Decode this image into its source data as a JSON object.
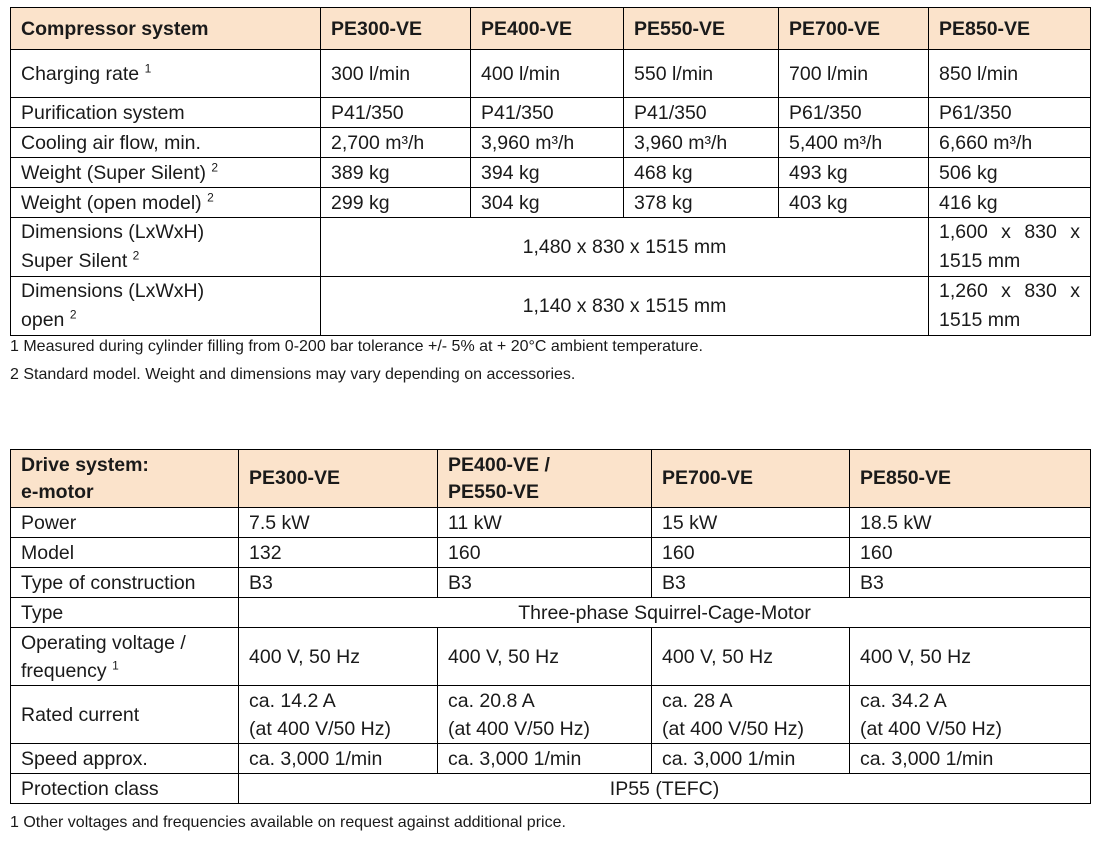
{
  "compressor": {
    "header": {
      "label": "Compressor system",
      "models": [
        "PE300-VE",
        "PE400-VE",
        "PE550-VE",
        "PE700-VE",
        "PE850-VE"
      ]
    },
    "rows": {
      "charging_rate": {
        "label": "Charging rate",
        "sup": "1",
        "values": [
          "300 l/min",
          "400 l/min",
          "550 l/min",
          "700 l/min",
          "850 l/min"
        ]
      },
      "purification": {
        "label": "Purification system",
        "values": [
          "P41/350",
          "P41/350",
          "P41/350",
          "P61/350",
          "P61/350"
        ]
      },
      "cooling": {
        "label": "Cooling air flow, min.",
        "values": [
          "2,700 m³/h",
          "3,960 m³/h",
          "3,960 m³/h",
          "5,400 m³/h",
          "6,660 m³/h"
        ]
      },
      "weight_silent": {
        "label": "Weight (Super Silent)",
        "sup": "2",
        "values": [
          "389 kg",
          "394 kg",
          "468 kg",
          "493 kg",
          "506 kg"
        ]
      },
      "weight_open": {
        "label": "Weight (open model)",
        "sup": "2",
        "values": [
          "299 kg",
          "304 kg",
          "378 kg",
          "403 kg",
          "416 kg"
        ]
      },
      "dim_silent": {
        "label_line1": "Dimensions (LxWxH)",
        "label_line2": "Super Silent",
        "sup": "2",
        "shared": "1,480 x 830 x 1515 mm",
        "last": "1,600 x 830 x 1515 mm"
      },
      "dim_open": {
        "label_line1": "Dimensions (LxWxH)",
        "label_line2": "open",
        "sup": "2",
        "shared": "1,140 x 830 x 1515 mm",
        "last": "1,260 x 830 x 1515 mm"
      }
    },
    "notes": [
      "1 Measured during cylinder filling from 0-200 bar tolerance +/- 5% at + 20°C ambient temperature.",
      "2 Standard model. Weight and dimensions may vary depending on accessories."
    ]
  },
  "drive": {
    "header": {
      "label_line1": "Drive system:",
      "label_line2": "e-motor",
      "models": [
        "PE300-VE",
        "PE400-VE /",
        "PE550-VE",
        "PE700-VE",
        "PE850-VE"
      ]
    },
    "rows": {
      "power": {
        "label": "Power",
        "values": [
          "7.5 kW",
          "11 kW",
          "15 kW",
          "18.5 kW"
        ]
      },
      "model": {
        "label": "Model",
        "values": [
          "132",
          "160",
          "160",
          "160"
        ]
      },
      "construction": {
        "label": "Type of construction",
        "values": [
          "B3",
          "B3",
          "B3",
          "B3"
        ]
      },
      "type": {
        "label": "Type",
        "shared": "Three-phase Squirrel-Cage-Motor"
      },
      "voltage": {
        "label_line1": "Operating voltage /",
        "label_line2": "frequency",
        "sup": "1",
        "values": [
          "400 V, 50 Hz",
          "400 V, 50 Hz",
          "400 V, 50 Hz",
          "400 V, 50 Hz"
        ]
      },
      "current": {
        "label": "Rated current",
        "values": [
          "ca. 14.2 A",
          "ca. 20.8 A",
          "ca. 28 A",
          "ca. 34.2 A"
        ],
        "sub": [
          "(at 400 V/50 Hz)",
          "(at 400 V/50 Hz)",
          "(at 400 V/50 Hz)",
          "(at 400 V/50 Hz)"
        ]
      },
      "speed": {
        "label": "Speed approx.",
        "values": [
          "ca. 3,000 1/min",
          "ca. 3,000 1/min",
          "ca. 3,000 1/min",
          "ca. 3,000 1/min"
        ]
      },
      "protection": {
        "label": "Protection class",
        "shared": "IP55 (TEFC)"
      }
    },
    "notes": [
      "1  Other voltages and frequencies available on request against additional price."
    ]
  }
}
